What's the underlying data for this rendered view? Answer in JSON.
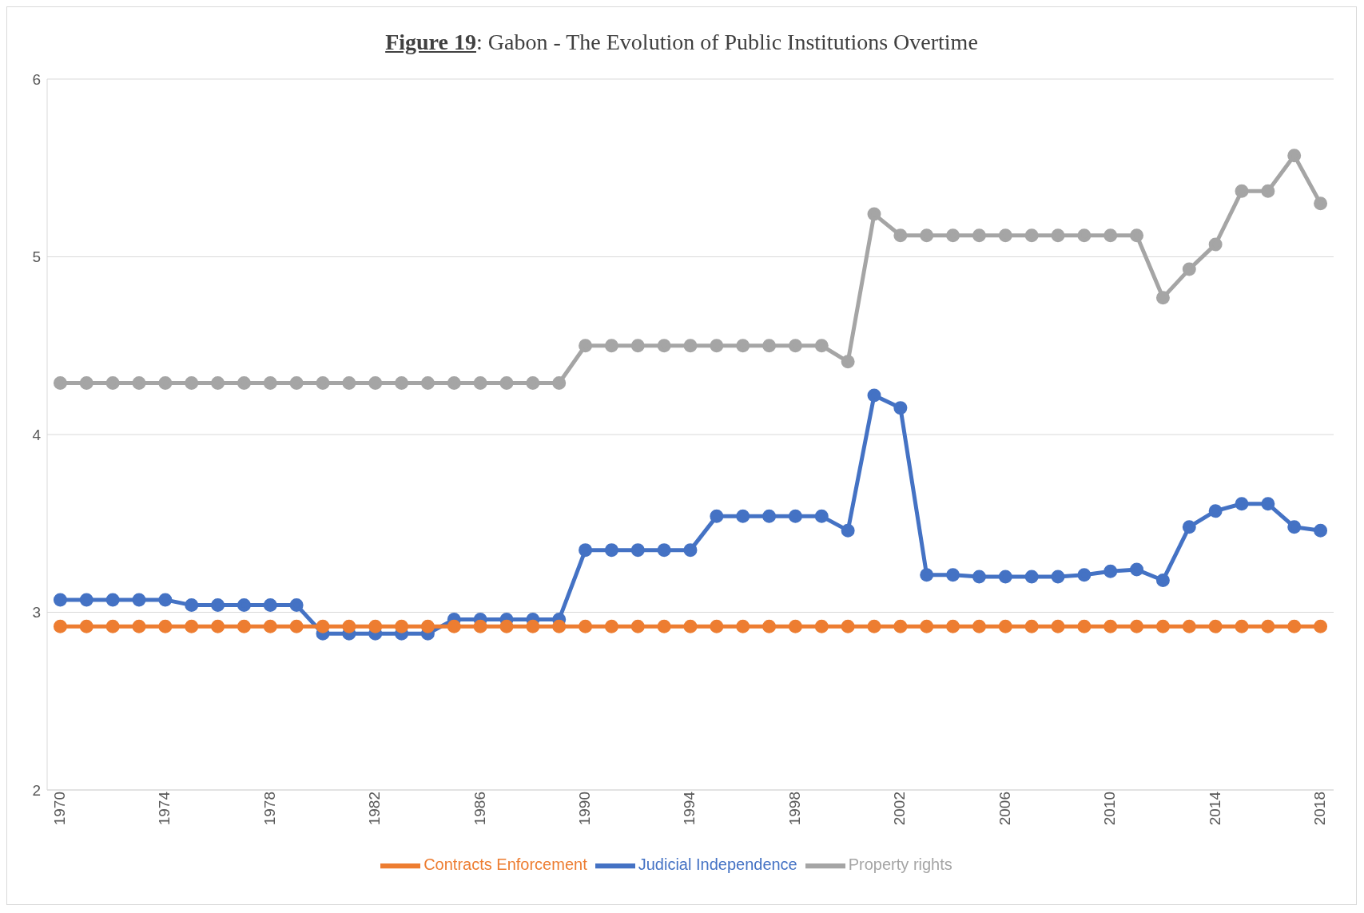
{
  "chart_data": {
    "type": "line",
    "title": "Figure 19: Gabon - The Evolution of Public Institutions Overtime",
    "x": [
      1970,
      1971,
      1972,
      1973,
      1974,
      1975,
      1976,
      1977,
      1978,
      1979,
      1980,
      1981,
      1982,
      1983,
      1984,
      1985,
      1986,
      1987,
      1988,
      1989,
      1990,
      1991,
      1992,
      1993,
      1994,
      1995,
      1996,
      1997,
      1998,
      1999,
      2000,
      2001,
      2002,
      2003,
      2004,
      2005,
      2006,
      2007,
      2008,
      2009,
      2010,
      2011,
      2012,
      2013,
      2014,
      2015,
      2016,
      2017,
      2018
    ],
    "series": [
      {
        "name": "Judicial Independence",
        "color": "#4472c4",
        "values": [
          3.07,
          3.07,
          3.07,
          3.07,
          3.07,
          3.04,
          3.04,
          3.04,
          3.04,
          3.04,
          2.88,
          2.88,
          2.88,
          2.88,
          2.88,
          2.96,
          2.96,
          2.96,
          2.96,
          2.96,
          3.35,
          3.35,
          3.35,
          3.35,
          3.35,
          3.54,
          3.54,
          3.54,
          3.54,
          3.54,
          3.46,
          4.22,
          4.15,
          3.21,
          3.21,
          3.2,
          3.2,
          3.2,
          3.2,
          3.21,
          3.23,
          3.24,
          3.18,
          3.48,
          3.57,
          3.61,
          3.61,
          3.48,
          3.46
        ]
      },
      {
        "name": "Contracts Enforcement",
        "color": "#ed7d31",
        "values": [
          2.92,
          2.92,
          2.92,
          2.92,
          2.92,
          2.92,
          2.92,
          2.92,
          2.92,
          2.92,
          2.92,
          2.92,
          2.92,
          2.92,
          2.92,
          2.92,
          2.92,
          2.92,
          2.92,
          2.92,
          2.92,
          2.92,
          2.92,
          2.92,
          2.92,
          2.92,
          2.92,
          2.92,
          2.92,
          2.92,
          2.92,
          2.92,
          2.92,
          2.92,
          2.92,
          2.92,
          2.92,
          2.92,
          2.92,
          2.92,
          2.92,
          2.92,
          2.92,
          2.92,
          2.92,
          2.92,
          2.92,
          2.92,
          2.92
        ]
      },
      {
        "name": "Property rights",
        "color": "#a5a5a5",
        "values": [
          4.29,
          4.29,
          4.29,
          4.29,
          4.29,
          4.29,
          4.29,
          4.29,
          4.29,
          4.29,
          4.29,
          4.29,
          4.29,
          4.29,
          4.29,
          4.29,
          4.29,
          4.29,
          4.29,
          4.29,
          4.5,
          4.5,
          4.5,
          4.5,
          4.5,
          4.5,
          4.5,
          4.5,
          4.5,
          4.5,
          4.41,
          5.24,
          5.12,
          5.12,
          5.12,
          5.12,
          5.12,
          5.12,
          5.12,
          5.12,
          5.12,
          5.12,
          4.77,
          4.93,
          5.07,
          5.37,
          5.37,
          5.57,
          5.3
        ]
      }
    ],
    "xlim": [
      1969.5,
      2018.5
    ],
    "xticks": [
      1970,
      1974,
      1978,
      1982,
      1986,
      1990,
      1994,
      1998,
      2002,
      2006,
      2010,
      2014,
      2018
    ],
    "ylim": [
      2,
      6
    ],
    "yticks": [
      2,
      3,
      4,
      5,
      6
    ],
    "grid": "y",
    "legend": "bottom",
    "marker": "circle",
    "line_style": "solid"
  }
}
